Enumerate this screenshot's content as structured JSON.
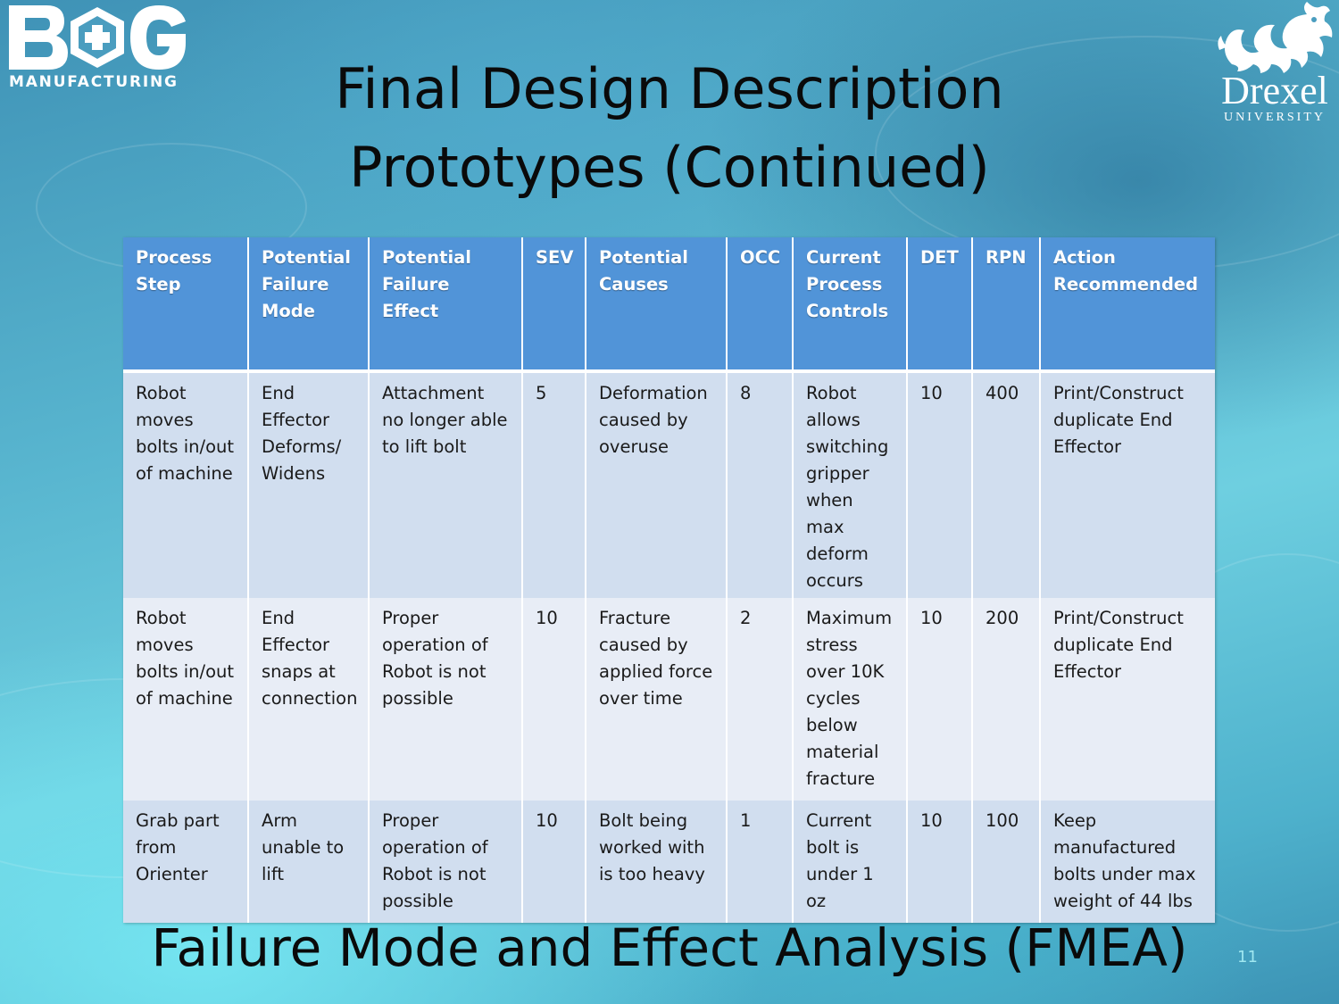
{
  "slide": {
    "title_line1": "Final Design Description",
    "title_line2": "Prototypes (Continued)",
    "caption": "Failure Mode and Effect Analysis (FMEA)",
    "slide_number": "11"
  },
  "logos": {
    "left": {
      "letters": "B G",
      "wordmark": "MANUFACTURING",
      "icon": "hexagon-plus-icon"
    },
    "right": {
      "name": "Drexel",
      "sub": "UNIVERSITY",
      "icon": "dragon-icon"
    }
  },
  "table": {
    "headers": [
      "Process Step",
      "Potential Failure Mode",
      "Potential Failure Effect",
      "SEV",
      "Potential Causes",
      "OCC",
      "Current Process Controls",
      "DET",
      "RPN",
      "Action Recommended"
    ],
    "rows": [
      [
        "Robot moves bolts in/out of machine",
        "End Effector Deforms/ Widens",
        "Attachment no longer able to lift bolt",
        "5",
        "Deformation caused by overuse",
        "8",
        "Robot allows switching gripper when max deform occurs",
        "10",
        "400",
        "Print/Construct duplicate End Effector"
      ],
      [
        "Robot moves bolts in/out of machine",
        "End Effector snaps at connection",
        "Proper operation of Robot is not possible",
        "10",
        "Fracture caused by applied force over time",
        "2",
        "Maximum stress over 10K cycles below material fracture",
        "10",
        "200",
        "Print/Construct duplicate End Effector"
      ],
      [
        "Grab part from Orienter",
        "Arm unable to lift",
        "Proper operation of Robot is not possible",
        "10",
        "Bolt being worked with is too heavy",
        "1",
        "Current bolt is under 1 oz",
        "10",
        "100",
        "Keep manufactured bolts under max weight of 44 lbs"
      ]
    ]
  },
  "colors": {
    "header_bg": "#5194d8",
    "row_dark": "#d1deef",
    "row_light": "#e8edf6",
    "title_text": "#0a0a0a"
  }
}
